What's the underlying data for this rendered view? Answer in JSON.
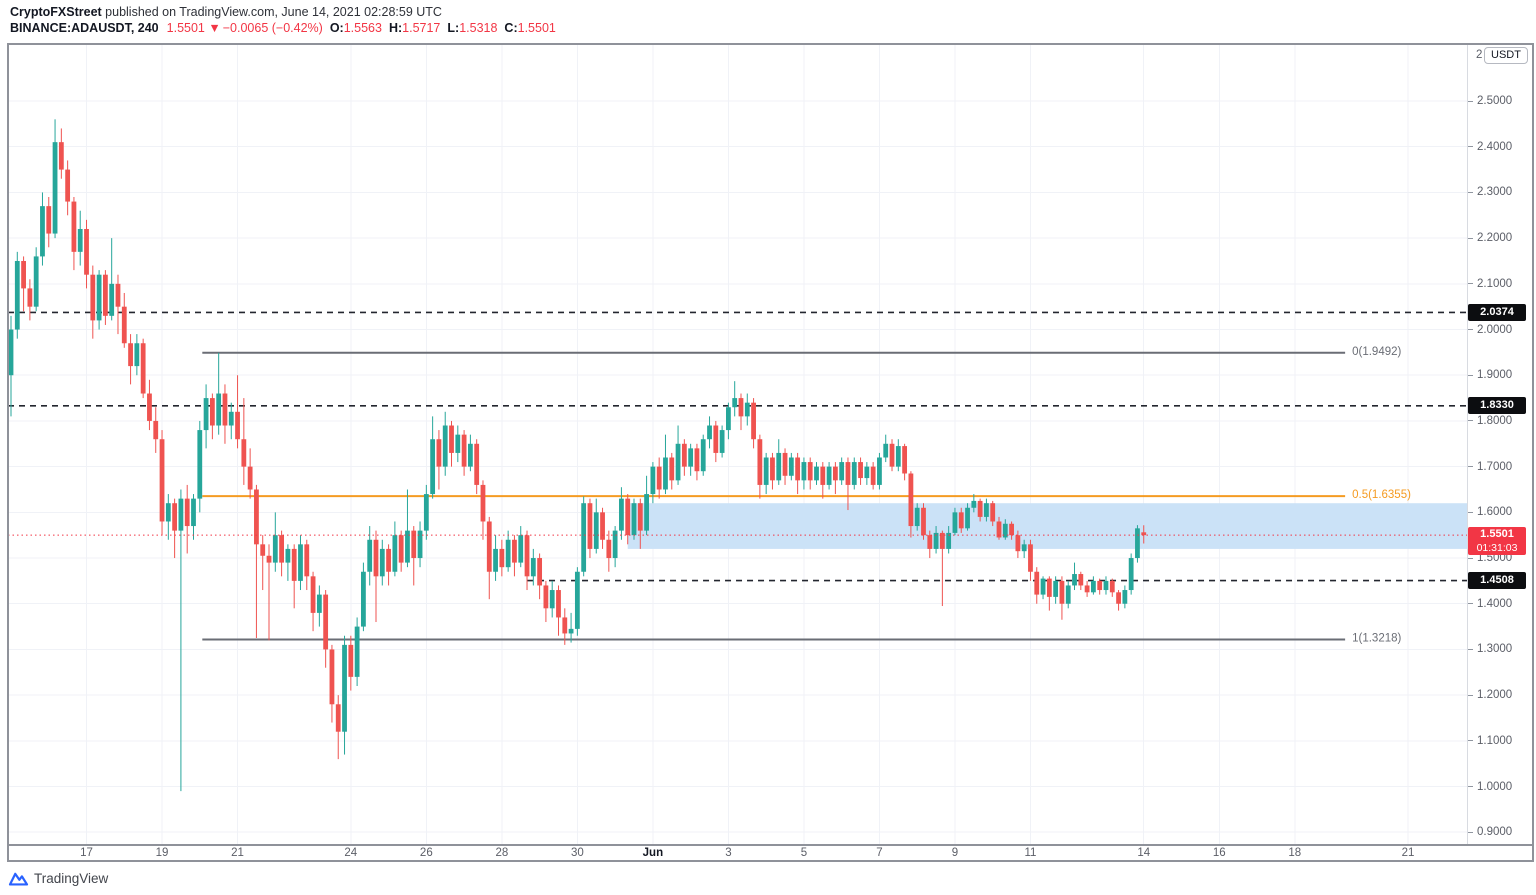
{
  "header": {
    "publisher": "CryptoFXStreet",
    "published_suffix": " published on TradingView.com, June 14, 2021 02:28:59 UTC"
  },
  "symbol": {
    "title": "BINANCE:ADAUSDT, 240",
    "last": "1.5501",
    "arrow": "▼",
    "change": "−0.0065 (−0.42%)",
    "o_label": "O:",
    "o": "1.5563",
    "h_label": "H:",
    "h": "1.5717",
    "l_label": "L:",
    "l": "1.5318",
    "c_label": "C:",
    "c": "1.5501"
  },
  "axis": {
    "top_partial": "2",
    "unit": "USDT"
  },
  "footer": {
    "brand": "TradingView"
  },
  "chart_data": {
    "type": "candlestick",
    "symbol": "BINANCE:ADAUSDT",
    "interval": "240",
    "colors": {
      "up": "#26a69a",
      "down": "#ef5350",
      "grid": "#f0f2f7",
      "zone": "#cbe2f7",
      "fib_gray": "#6a6d75",
      "fib_orange": "#f59b22",
      "dashed": "#23262f",
      "last_price": "#f23645",
      "chip_bg": "#0c0d10",
      "chip_red": "#f23645"
    },
    "y_axis": {
      "visible_range": [
        0.8721,
        2.6226
      ],
      "ticks": [
        "2.5000",
        "2.4000",
        "2.3000",
        "2.2000",
        "2.1000",
        "2.0000",
        "1.9000",
        "1.8000",
        "1.7000",
        "1.6000",
        "1.5000",
        "1.4000",
        "1.3000",
        "1.2000",
        "1.1000",
        "1.0000",
        "0.9000"
      ]
    },
    "x_axis": {
      "ticks": [
        {
          "label": "17",
          "idx": 12
        },
        {
          "label": "19",
          "idx": 24
        },
        {
          "label": "21",
          "idx": 36
        },
        {
          "label": "24",
          "idx": 54
        },
        {
          "label": "26",
          "idx": 66
        },
        {
          "label": "28",
          "idx": 78
        },
        {
          "label": "30",
          "idx": 90
        },
        {
          "label": "Jun",
          "idx": 102,
          "month": true
        },
        {
          "label": "3",
          "idx": 114
        },
        {
          "label": "5",
          "idx": 126
        },
        {
          "label": "7",
          "idx": 138
        },
        {
          "label": "9",
          "idx": 150
        },
        {
          "label": "11",
          "idx": 162
        },
        {
          "label": "14",
          "idx": 180
        },
        {
          "label": "16",
          "idx": 192
        },
        {
          "label": "18",
          "idx": 204
        },
        {
          "label": "21",
          "idx": 222
        }
      ]
    },
    "fib_retracement": [
      {
        "label": "0(1.9492)",
        "price": 1.9492,
        "color": "gray",
        "from_idx": 30.4,
        "to_idx": 212
      },
      {
        "label": "0.5(1.6355)",
        "price": 1.6355,
        "color": "orange",
        "from_idx": 30.4,
        "to_idx": 212
      },
      {
        "label": "1(1.3218)",
        "price": 1.3218,
        "color": "gray",
        "from_idx": 30.4,
        "to_idx": 212
      }
    ],
    "dashed_levels": [
      {
        "price": 2.0374,
        "label": "2.0374",
        "from_idx": -0.5
      },
      {
        "price": 1.833,
        "label": "1.8330",
        "from_idx": -0.5
      },
      {
        "price": 1.4508,
        "label": "1.4508",
        "from_idx": 82
      }
    ],
    "zone": {
      "top": 1.62,
      "bottom": 1.52,
      "from_idx": 98
    },
    "last_price": {
      "price": 1.5501,
      "value": "1.5501",
      "countdown": "01:31:03"
    },
    "candles": [
      [
        1.9,
        2.03,
        1.81,
        2.0
      ],
      [
        2.0,
        2.17,
        1.98,
        2.15
      ],
      [
        2.15,
        2.16,
        2.04,
        2.09
      ],
      [
        2.09,
        2.11,
        2.02,
        2.05
      ],
      [
        2.05,
        2.18,
        2.04,
        2.16
      ],
      [
        2.16,
        2.3,
        2.14,
        2.27
      ],
      [
        2.27,
        2.29,
        2.18,
        2.21
      ],
      [
        2.21,
        2.46,
        2.2,
        2.41
      ],
      [
        2.41,
        2.44,
        2.33,
        2.35
      ],
      [
        2.35,
        2.37,
        2.25,
        2.28
      ],
      [
        2.28,
        2.29,
        2.13,
        2.17
      ],
      [
        2.17,
        2.26,
        2.14,
        2.22
      ],
      [
        2.22,
        2.24,
        2.09,
        2.12
      ],
      [
        2.12,
        2.14,
        1.98,
        2.02
      ],
      [
        2.02,
        2.13,
        2.0,
        2.12
      ],
      [
        2.12,
        2.13,
        2.01,
        2.03
      ],
      [
        2.03,
        2.2,
        2.02,
        2.1
      ],
      [
        2.1,
        2.12,
        1.99,
        2.05
      ],
      [
        2.05,
        2.08,
        1.96,
        1.97
      ],
      [
        1.97,
        1.99,
        1.88,
        1.92
      ],
      [
        1.92,
        1.99,
        1.9,
        1.97
      ],
      [
        1.97,
        1.98,
        1.85,
        1.86
      ],
      [
        1.86,
        1.89,
        1.78,
        1.8
      ],
      [
        1.8,
        1.83,
        1.73,
        1.76
      ],
      [
        1.76,
        1.78,
        1.55,
        1.58
      ],
      [
        1.58,
        1.64,
        1.54,
        1.62
      ],
      [
        1.62,
        1.63,
        1.5,
        1.56
      ],
      [
        1.56,
        1.65,
        0.99,
        1.63
      ],
      [
        1.63,
        1.66,
        1.51,
        1.57
      ],
      [
        1.57,
        1.64,
        1.54,
        1.63
      ],
      [
        1.63,
        1.8,
        1.6,
        1.78
      ],
      [
        1.78,
        1.88,
        1.74,
        1.85
      ],
      [
        1.85,
        1.86,
        1.76,
        1.79
      ],
      [
        1.79,
        1.949,
        1.77,
        1.86
      ],
      [
        1.86,
        1.88,
        1.75,
        1.79
      ],
      [
        1.79,
        1.84,
        1.76,
        1.82
      ],
      [
        1.82,
        1.9,
        1.74,
        1.76
      ],
      [
        1.76,
        1.85,
        1.66,
        1.7
      ],
      [
        1.7,
        1.74,
        1.63,
        1.65
      ],
      [
        1.65,
        1.66,
        1.325,
        1.53
      ],
      [
        1.53,
        1.55,
        1.43,
        1.505
      ],
      [
        1.505,
        1.53,
        1.32,
        1.49
      ],
      [
        1.49,
        1.6,
        1.47,
        1.55
      ],
      [
        1.55,
        1.56,
        1.46,
        1.49
      ],
      [
        1.49,
        1.53,
        1.45,
        1.52
      ],
      [
        1.52,
        1.53,
        1.39,
        1.45
      ],
      [
        1.45,
        1.55,
        1.43,
        1.53
      ],
      [
        1.53,
        1.54,
        1.43,
        1.46
      ],
      [
        1.46,
        1.47,
        1.34,
        1.38
      ],
      [
        1.38,
        1.44,
        1.35,
        1.42
      ],
      [
        1.42,
        1.43,
        1.26,
        1.3
      ],
      [
        1.3,
        1.31,
        1.14,
        1.18
      ],
      [
        1.18,
        1.2,
        1.06,
        1.12
      ],
      [
        1.12,
        1.33,
        1.07,
        1.31
      ],
      [
        1.31,
        1.33,
        1.21,
        1.24
      ],
      [
        1.24,
        1.37,
        1.22,
        1.35
      ],
      [
        1.35,
        1.49,
        1.34,
        1.47
      ],
      [
        1.47,
        1.57,
        1.44,
        1.54
      ],
      [
        1.54,
        1.56,
        1.36,
        1.46
      ],
      [
        1.46,
        1.54,
        1.44,
        1.52
      ],
      [
        1.52,
        1.53,
        1.44,
        1.47
      ],
      [
        1.47,
        1.58,
        1.46,
        1.55
      ],
      [
        1.55,
        1.56,
        1.47,
        1.49
      ],
      [
        1.49,
        1.65,
        1.48,
        1.56
      ],
      [
        1.56,
        1.57,
        1.44,
        1.5
      ],
      [
        1.5,
        1.58,
        1.48,
        1.56
      ],
      [
        1.56,
        1.66,
        1.54,
        1.64
      ],
      [
        1.64,
        1.81,
        1.63,
        1.76
      ],
      [
        1.76,
        1.78,
        1.65,
        1.7
      ],
      [
        1.7,
        1.82,
        1.68,
        1.79
      ],
      [
        1.79,
        1.8,
        1.7,
        1.73
      ],
      [
        1.73,
        1.79,
        1.71,
        1.77
      ],
      [
        1.77,
        1.78,
        1.68,
        1.7
      ],
      [
        1.7,
        1.77,
        1.69,
        1.75
      ],
      [
        1.75,
        1.76,
        1.64,
        1.66
      ],
      [
        1.66,
        1.67,
        1.54,
        1.58
      ],
      [
        1.58,
        1.59,
        1.41,
        1.47
      ],
      [
        1.47,
        1.55,
        1.45,
        1.52
      ],
      [
        1.52,
        1.54,
        1.46,
        1.48
      ],
      [
        1.48,
        1.56,
        1.47,
        1.54
      ],
      [
        1.54,
        1.55,
        1.46,
        1.49
      ],
      [
        1.49,
        1.57,
        1.48,
        1.55
      ],
      [
        1.55,
        1.56,
        1.43,
        1.46
      ],
      [
        1.46,
        1.52,
        1.44,
        1.5
      ],
      [
        1.5,
        1.51,
        1.41,
        1.44
      ],
      [
        1.44,
        1.45,
        1.36,
        1.39
      ],
      [
        1.39,
        1.45,
        1.37,
        1.43
      ],
      [
        1.43,
        1.44,
        1.33,
        1.37
      ],
      [
        1.37,
        1.39,
        1.31,
        1.335
      ],
      [
        1.335,
        1.38,
        1.315,
        1.345
      ],
      [
        1.345,
        1.48,
        1.33,
        1.47
      ],
      [
        1.47,
        1.635,
        1.46,
        1.62
      ],
      [
        1.62,
        1.63,
        1.5,
        1.52
      ],
      [
        1.52,
        1.63,
        1.51,
        1.6
      ],
      [
        1.6,
        1.61,
        1.52,
        1.54
      ],
      [
        1.54,
        1.56,
        1.47,
        1.5
      ],
      [
        1.5,
        1.57,
        1.48,
        1.56
      ],
      [
        1.56,
        1.655,
        1.54,
        1.63
      ],
      [
        1.63,
        1.64,
        1.53,
        1.55
      ],
      [
        1.55,
        1.63,
        1.54,
        1.62
      ],
      [
        1.62,
        1.63,
        1.52,
        1.56
      ],
      [
        1.56,
        1.68,
        1.55,
        1.64
      ],
      [
        1.64,
        1.71,
        1.62,
        1.7
      ],
      [
        1.7,
        1.72,
        1.63,
        1.65
      ],
      [
        1.65,
        1.77,
        1.64,
        1.72
      ],
      [
        1.72,
        1.73,
        1.65,
        1.67
      ],
      [
        1.67,
        1.79,
        1.66,
        1.75
      ],
      [
        1.75,
        1.76,
        1.68,
        1.7
      ],
      [
        1.7,
        1.75,
        1.68,
        1.74
      ],
      [
        1.74,
        1.75,
        1.67,
        1.69
      ],
      [
        1.69,
        1.77,
        1.68,
        1.76
      ],
      [
        1.76,
        1.81,
        1.74,
        1.79
      ],
      [
        1.79,
        1.8,
        1.71,
        1.73
      ],
      [
        1.73,
        1.79,
        1.72,
        1.78
      ],
      [
        1.78,
        1.84,
        1.76,
        1.83
      ],
      [
        1.83,
        1.887,
        1.81,
        1.85
      ],
      [
        1.85,
        1.86,
        1.78,
        1.81
      ],
      [
        1.81,
        1.86,
        1.79,
        1.84
      ],
      [
        1.84,
        1.85,
        1.74,
        1.76
      ],
      [
        1.76,
        1.77,
        1.63,
        1.66
      ],
      [
        1.66,
        1.73,
        1.64,
        1.72
      ],
      [
        1.72,
        1.73,
        1.65,
        1.67
      ],
      [
        1.67,
        1.76,
        1.66,
        1.73
      ],
      [
        1.73,
        1.74,
        1.66,
        1.68
      ],
      [
        1.68,
        1.73,
        1.67,
        1.72
      ],
      [
        1.72,
        1.73,
        1.64,
        1.67
      ],
      [
        1.67,
        1.72,
        1.65,
        1.71
      ],
      [
        1.71,
        1.72,
        1.65,
        1.67
      ],
      [
        1.67,
        1.71,
        1.66,
        1.7
      ],
      [
        1.7,
        1.71,
        1.63,
        1.66
      ],
      [
        1.66,
        1.71,
        1.65,
        1.7
      ],
      [
        1.7,
        1.71,
        1.64,
        1.67
      ],
      [
        1.67,
        1.72,
        1.66,
        1.71
      ],
      [
        1.71,
        1.72,
        1.605,
        1.66
      ],
      [
        1.66,
        1.72,
        1.65,
        1.71
      ],
      [
        1.71,
        1.72,
        1.66,
        1.675
      ],
      [
        1.675,
        1.71,
        1.66,
        1.7
      ],
      [
        1.7,
        1.71,
        1.65,
        1.66
      ],
      [
        1.66,
        1.73,
        1.65,
        1.72
      ],
      [
        1.72,
        1.77,
        1.71,
        1.75
      ],
      [
        1.75,
        1.76,
        1.69,
        1.7
      ],
      [
        1.7,
        1.76,
        1.69,
        1.745
      ],
      [
        1.745,
        1.75,
        1.67,
        1.685
      ],
      [
        1.685,
        1.69,
        1.545,
        1.57
      ],
      [
        1.57,
        1.62,
        1.56,
        1.61
      ],
      [
        1.61,
        1.62,
        1.54,
        1.55
      ],
      [
        1.55,
        1.56,
        1.5,
        1.52
      ],
      [
        1.52,
        1.57,
        1.51,
        1.555
      ],
      [
        1.555,
        1.56,
        1.395,
        1.52
      ],
      [
        1.52,
        1.57,
        1.51,
        1.555
      ],
      [
        1.555,
        1.61,
        1.55,
        1.6
      ],
      [
        1.6,
        1.61,
        1.555,
        1.565
      ],
      [
        1.565,
        1.62,
        1.56,
        1.61
      ],
      [
        1.61,
        1.64,
        1.6,
        1.625
      ],
      [
        1.625,
        1.63,
        1.58,
        1.59
      ],
      [
        1.59,
        1.63,
        1.58,
        1.62
      ],
      [
        1.62,
        1.625,
        1.57,
        1.58
      ],
      [
        1.58,
        1.59,
        1.54,
        1.545
      ],
      [
        1.545,
        1.585,
        1.54,
        1.575
      ],
      [
        1.575,
        1.58,
        1.54,
        1.55
      ],
      [
        1.55,
        1.56,
        1.5,
        1.515
      ],
      [
        1.515,
        1.54,
        1.5,
        1.53
      ],
      [
        1.53,
        1.54,
        1.45,
        1.47
      ],
      [
        1.47,
        1.48,
        1.4,
        1.42
      ],
      [
        1.42,
        1.46,
        1.41,
        1.455
      ],
      [
        1.455,
        1.46,
        1.385,
        1.415
      ],
      [
        1.415,
        1.46,
        1.4,
        1.45
      ],
      [
        1.45,
        1.46,
        1.365,
        1.4
      ],
      [
        1.4,
        1.45,
        1.39,
        1.44
      ],
      [
        1.44,
        1.49,
        1.43,
        1.465
      ],
      [
        1.465,
        1.47,
        1.43,
        1.44
      ],
      [
        1.44,
        1.45,
        1.415,
        1.425
      ],
      [
        1.425,
        1.46,
        1.42,
        1.45
      ],
      [
        1.45,
        1.455,
        1.42,
        1.43
      ],
      [
        1.43,
        1.46,
        1.42,
        1.45
      ],
      [
        1.45,
        1.455,
        1.415,
        1.425
      ],
      [
        1.425,
        1.43,
        1.385,
        1.4
      ],
      [
        1.4,
        1.44,
        1.39,
        1.43
      ],
      [
        1.43,
        1.51,
        1.42,
        1.5
      ],
      [
        1.5,
        1.572,
        1.49,
        1.565
      ],
      [
        1.5563,
        1.5717,
        1.5318,
        1.5501
      ]
    ]
  }
}
